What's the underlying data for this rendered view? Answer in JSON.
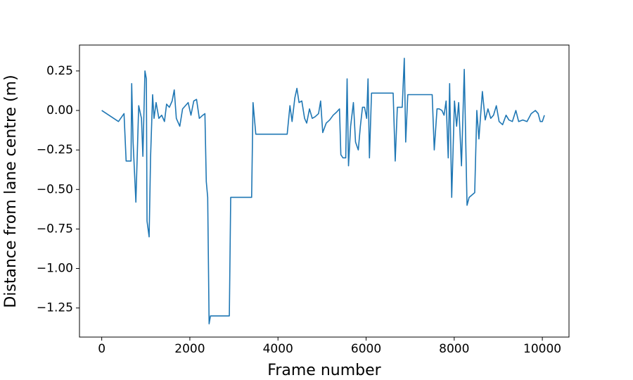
{
  "chart_data": {
    "type": "line",
    "xlabel": "Frame number",
    "ylabel": "Distance from lane centre (m)",
    "color": "#1f77b4",
    "xlim": [
      -505,
      10605
    ],
    "ylim": [
      -1.434,
      0.414
    ],
    "xticks": [
      0,
      2000,
      4000,
      6000,
      8000,
      10000
    ],
    "yticks": [
      {
        "value": -1.25,
        "label": "−1.25"
      },
      {
        "value": -1.0,
        "label": "−1.00"
      },
      {
        "value": -0.75,
        "label": "−0.75"
      },
      {
        "value": -0.5,
        "label": "−0.50"
      },
      {
        "value": -0.25,
        "label": "−0.25"
      },
      {
        "value": 0,
        "label": "0.00"
      },
      0.25
    ],
    "x": [
      0,
      380,
      506,
      554,
      665,
      680,
      712,
      775,
      839,
      902,
      934,
      981,
      1013,
      1028,
      1076,
      1108,
      1155,
      1187,
      1234,
      1297,
      1361,
      1424,
      1472,
      1535,
      1598,
      1646,
      1693,
      1772,
      1835,
      1899,
      1962,
      2025,
      2089,
      2152,
      2215,
      2294,
      2342,
      2373,
      2405,
      2437,
      2468,
      2896,
      2927,
      3402,
      3434,
      3497,
      4209,
      4272,
      4320,
      4383,
      4430,
      4478,
      4541,
      4604,
      4652,
      4715,
      4778,
      4842,
      4921,
      4968,
      5016,
      5095,
      5174,
      5253,
      5332,
      5396,
      5427,
      5475,
      5538,
      5569,
      5601,
      5649,
      5712,
      5760,
      5823,
      5870,
      5918,
      5965,
      6013,
      6044,
      6076,
      6123,
      6614,
      6661,
      6709,
      6820,
      6867,
      6899,
      6946,
      7500,
      7547,
      7610,
      7658,
      7721,
      7769,
      7816,
      7864,
      7896,
      7943,
      8006,
      8054,
      8101,
      8165,
      8228,
      8291,
      8339,
      8465,
      8513,
      8560,
      8639,
      8703,
      8766,
      8829,
      8892,
      8956,
      9019,
      9098,
      9177,
      9241,
      9320,
      9399,
      9462,
      9557,
      9652,
      9747,
      9842,
      9905,
      9953,
      10000,
      10047
    ],
    "values": [
      0,
      -0.07,
      -0.02,
      -0.32,
      -0.32,
      0.17,
      -0.2,
      -0.58,
      0.03,
      -0.05,
      -0.29,
      0.25,
      0.2,
      -0.7,
      -0.8,
      -0.3,
      0.1,
      -0.05,
      0.05,
      -0.05,
      -0.03,
      -0.07,
      0.04,
      0.02,
      0.06,
      0.13,
      -0.05,
      -0.1,
      0.01,
      0.03,
      0.05,
      -0.03,
      0.06,
      0.07,
      -0.05,
      -0.03,
      -0.02,
      -0.45,
      -0.55,
      -1.35,
      -1.3,
      -1.3,
      -0.55,
      -0.55,
      0.05,
      -0.15,
      -0.15,
      0.03,
      -0.07,
      0.08,
      0.14,
      0.05,
      0.06,
      -0.05,
      -0.08,
      0.01,
      -0.05,
      -0.04,
      -0.02,
      0.06,
      -0.14,
      -0.08,
      -0.06,
      -0.03,
      -0.01,
      0.01,
      -0.28,
      -0.3,
      -0.3,
      0.2,
      -0.35,
      -0.1,
      0.05,
      -0.2,
      -0.25,
      -0.1,
      0.02,
      0.02,
      -0.05,
      0.2,
      -0.3,
      0.11,
      0.11,
      -0.32,
      0.02,
      0.02,
      0.33,
      -0.2,
      0.1,
      0.1,
      -0.25,
      0.01,
      0.01,
      0,
      -0.03,
      0.06,
      -0.3,
      0.17,
      -0.55,
      0.06,
      -0.1,
      0.05,
      -0.35,
      0.26,
      -0.6,
      -0.55,
      -0.52,
      0,
      -0.18,
      0.12,
      -0.06,
      0.01,
      -0.05,
      -0.03,
      0.03,
      -0.07,
      -0.09,
      -0.03,
      -0.06,
      -0.07,
      0,
      -0.07,
      -0.06,
      -0.07,
      -0.02,
      0,
      -0.02,
      -0.07,
      -0.07,
      -0.03
    ]
  }
}
